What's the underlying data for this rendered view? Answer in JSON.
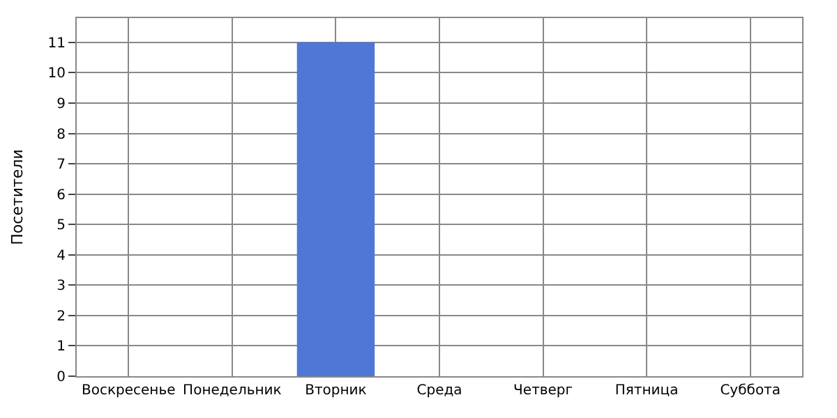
{
  "chart_data": {
    "type": "bar",
    "ylabel": "Посетители",
    "categories": [
      "Воскресенье",
      "Понедельник",
      "Вторник",
      "Среда",
      "Четверг",
      "Пятница",
      "Суббота"
    ],
    "values": [
      0,
      0,
      11,
      0,
      0,
      0,
      0
    ],
    "color": "#4f77d6",
    "ylim": [
      0,
      11.8
    ],
    "yticks": [
      0,
      1,
      2,
      3,
      4,
      5,
      6,
      7,
      8,
      9,
      10,
      11
    ],
    "grid": true
  }
}
